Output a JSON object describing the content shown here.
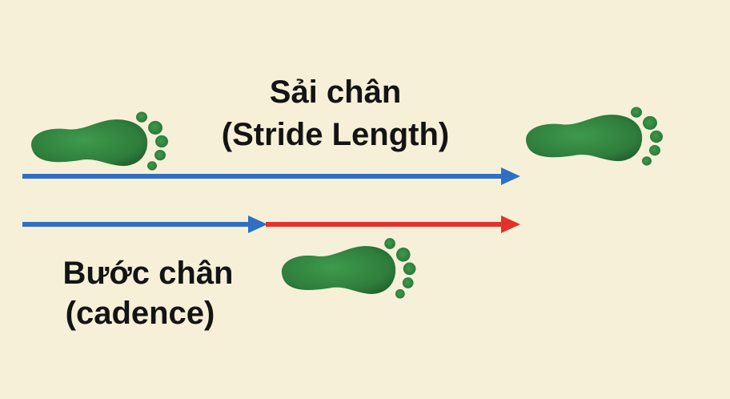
{
  "labels": {
    "stride_title": "Sải chân",
    "stride_subtitle": "(Stride Length)",
    "step_title": "Bước chân",
    "step_subtitle": "(cadence)"
  },
  "colors": {
    "background": "#f6f0d8",
    "footprint": "#2e7d3c",
    "footprint_shade": "#1f5a2c",
    "arrow_blue": "#2f6fc4",
    "arrow_red": "#e2322b",
    "text": "#141414"
  },
  "icons": [
    "footprint-left-icon",
    "footprint-right-icon",
    "footprint-middle-icon"
  ]
}
